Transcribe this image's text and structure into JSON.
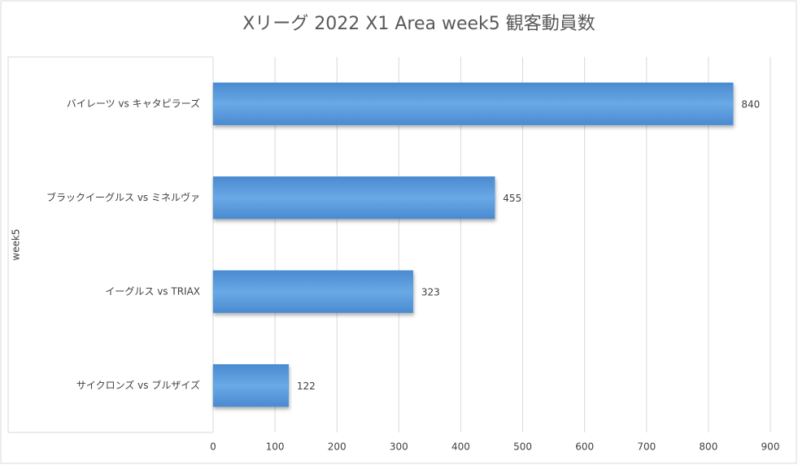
{
  "chart_data": {
    "type": "bar",
    "orientation": "horizontal",
    "title": "Xリーグ 2022 X1 Area week5 観客動員数",
    "y_label": "week5",
    "categories": [
      "バイレーツ vs キャタピラーズ",
      "ブラックイーグルス vs ミネルヴァ",
      "イーグルス vs TRIAX",
      "サイクロンズ vs ブルザイズ"
    ],
    "values": [
      840,
      455,
      323,
      122
    ],
    "color": "#5b9bd5",
    "xlim": [
      0,
      900
    ],
    "xticks": [
      0,
      100,
      200,
      300,
      400,
      500,
      600,
      700,
      800,
      900
    ],
    "grid": true
  }
}
